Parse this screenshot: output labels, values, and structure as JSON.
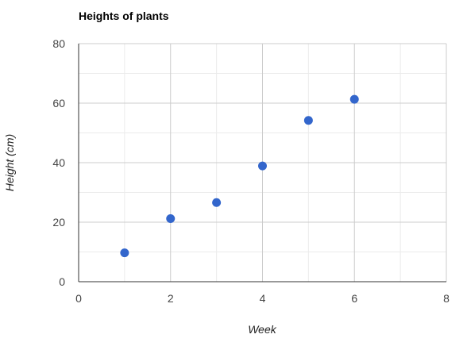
{
  "chart_data": {
    "type": "scatter",
    "title": "Heights of plants",
    "xlabel": "Week",
    "ylabel": "Height (cm)",
    "xlim": [
      0,
      8
    ],
    "ylim": [
      0,
      80
    ],
    "x_ticks": [
      "0",
      "2",
      "4",
      "6",
      "8"
    ],
    "y_ticks": [
      "0",
      "20",
      "40",
      "60",
      "80"
    ],
    "grid": true,
    "legend": "none",
    "series": [
      {
        "x": [
          1,
          2,
          3,
          4,
          5,
          6
        ],
        "y": [
          9.7,
          21.2,
          26.6,
          38.9,
          54.2,
          61.3
        ],
        "color": "#3366cc"
      }
    ],
    "colors": {
      "point": "#3366cc",
      "major_grid": "#cccccc",
      "minor_grid": "#ebebeb",
      "axis": "#333333"
    }
  }
}
